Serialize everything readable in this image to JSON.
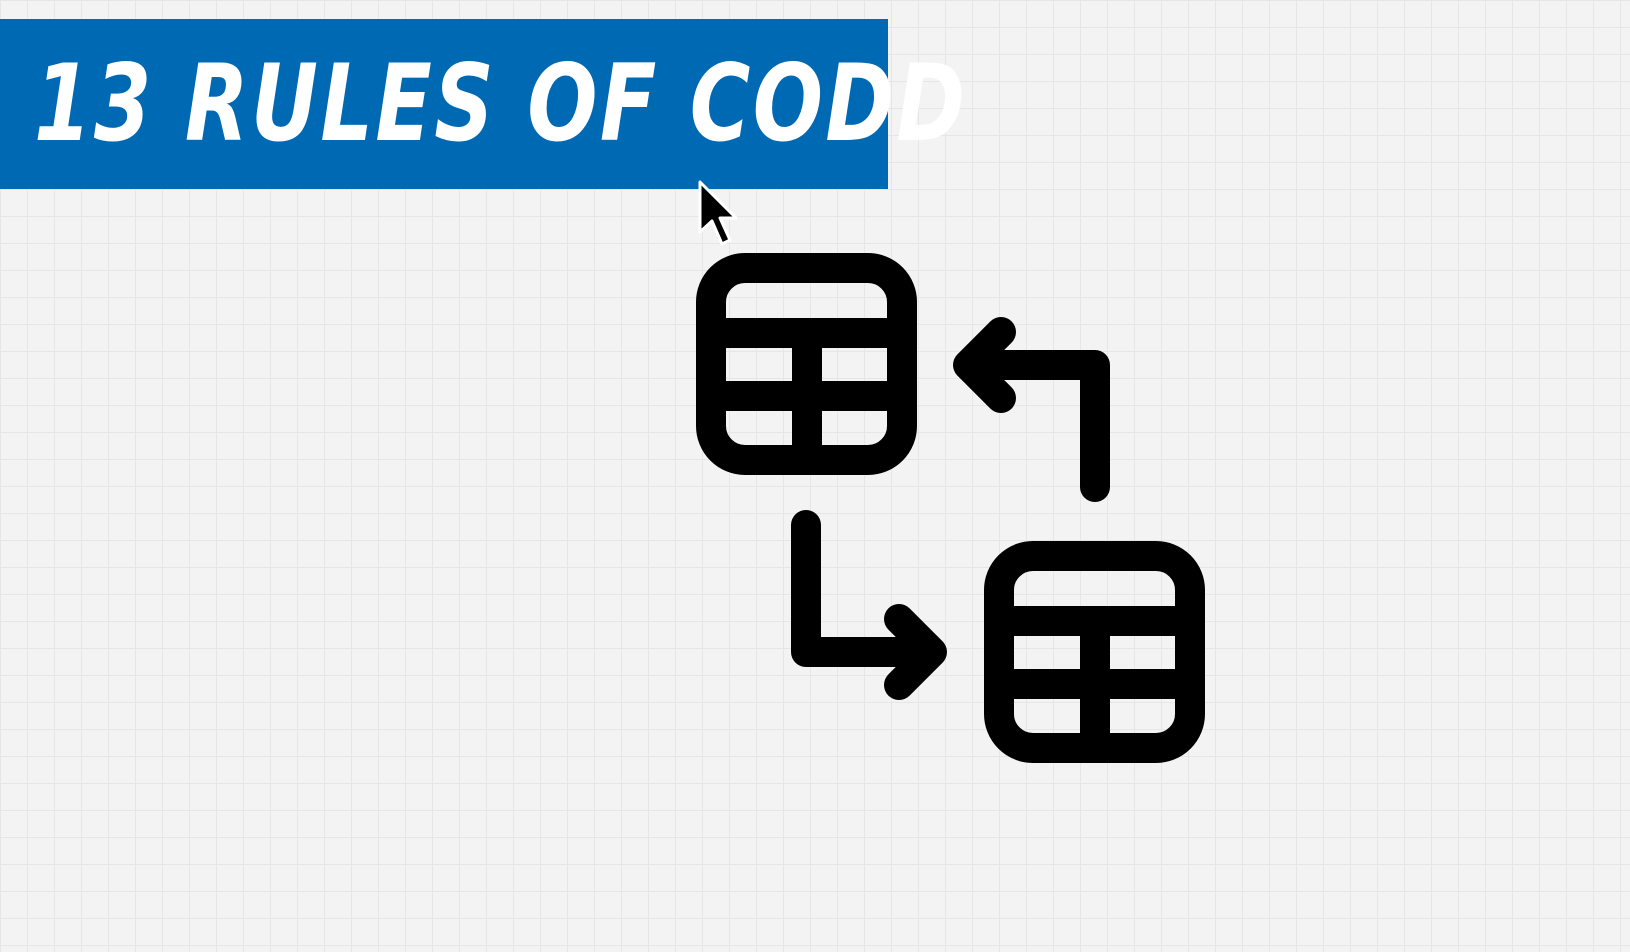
{
  "title": {
    "text": "13 RULES OF CODD"
  },
  "colors": {
    "banner": "#0069b4",
    "banner_text": "#ffffff",
    "icon": "#000000",
    "background": "#f3f3f3",
    "grid": "#e6e6e6"
  },
  "diagram": {
    "icons": [
      "table-icon",
      "table-icon",
      "arrow-up-left-icon",
      "arrow-down-right-icon"
    ]
  },
  "cursor": {
    "icon": "mouse-pointer-icon"
  }
}
